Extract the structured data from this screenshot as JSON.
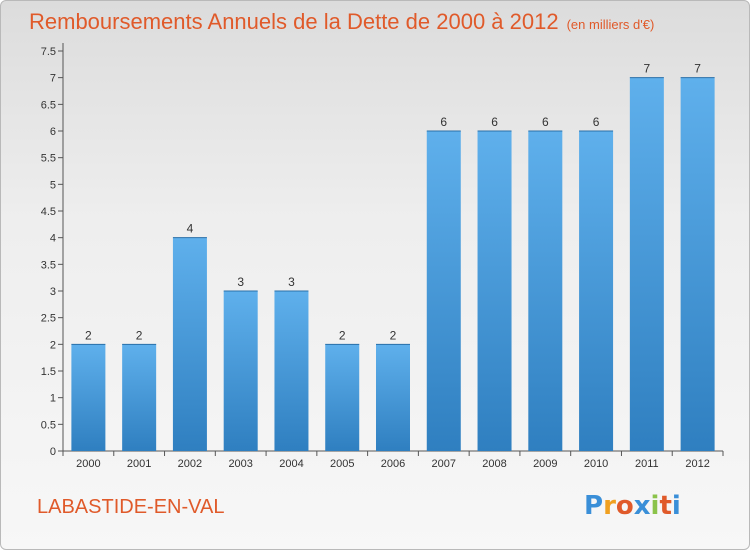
{
  "title": "Remboursements Annuels de la Dette de 2000 à 2012",
  "subtitle": "(en milliers d'€)",
  "place": "LABASTIDE-EN-VAL",
  "logo": {
    "letters": [
      "P",
      "r",
      "o",
      "x",
      "i",
      "t",
      "i"
    ],
    "colors": [
      "#3a8fd8",
      "#f0a020",
      "#e05a2a",
      "#3a8fd8",
      "#8bc34a",
      "#e05a2a",
      "#3a8fd8"
    ]
  },
  "colors": {
    "bar": "#4a9fdf",
    "bar_light": "#6bb7ef",
    "text": "#333333",
    "accent": "#e05a2a"
  },
  "chart_data": {
    "type": "bar",
    "categories": [
      "2000",
      "2001",
      "2002",
      "2003",
      "2004",
      "2005",
      "2006",
      "2007",
      "2008",
      "2009",
      "2010",
      "2011",
      "2012"
    ],
    "values": [
      2,
      2,
      4,
      3,
      3,
      2,
      2,
      6,
      6,
      6,
      6,
      7,
      7
    ],
    "data_labels": [
      "2",
      "2",
      "4",
      "3",
      "3",
      "2",
      "2",
      "6",
      "6",
      "6",
      "6",
      "7",
      "7"
    ],
    "ylim": [
      0,
      7.5
    ],
    "yticks": [
      0,
      0.5,
      1,
      1.5,
      2,
      2.5,
      3,
      3.5,
      4,
      4.5,
      5,
      5.5,
      6,
      6.5,
      7,
      7.5
    ],
    "ytick_labels": [
      "0",
      "0.5",
      "1",
      "1.5",
      "2",
      "2.5",
      "3",
      "3.5",
      "4",
      "4.5",
      "5",
      "5.5",
      "6",
      "6.5",
      "7",
      "7.5"
    ],
    "xlabel": "",
    "ylabel": "",
    "grid": false
  }
}
